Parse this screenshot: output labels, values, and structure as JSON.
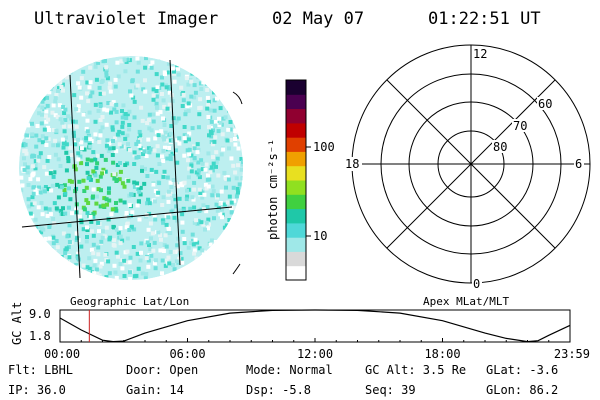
{
  "header": {
    "title": "Ultraviolet Imager",
    "date": "02 May 07",
    "time": "01:22:51 UT"
  },
  "colorbar": {
    "label": "photon cm⁻²s⁻¹",
    "ticks": [
      "100",
      "10"
    ],
    "colors": [
      "#ffffff",
      "#d9d9d9",
      "#9fe8e8",
      "#4fd8d8",
      "#1fc8a8",
      "#40d040",
      "#90e020",
      "#e8e020",
      "#f0a000",
      "#e04000",
      "#c00000",
      "#900030",
      "#4a0050",
      "#1a0030"
    ]
  },
  "polar": {
    "mlt_labels": {
      "top": "12",
      "left": "18",
      "right": "6",
      "bottom": "0"
    },
    "lat_labels": [
      "60",
      "70",
      "80"
    ]
  },
  "map_labels": {
    "left": "Geographic Lat/Lon",
    "right": "Apex MLat/MLT"
  },
  "chart_data": {
    "type": "line",
    "title": "",
    "ylabel": "GC Alt",
    "yticks": [
      "9.0",
      "1.8"
    ],
    "xticks": [
      "00:00",
      "06:00",
      "12:00",
      "18:00",
      "23:59"
    ],
    "xlim_hours": [
      0,
      24
    ],
    "ylim": [
      1.8,
      9.0
    ],
    "marker_time_hours": 1.38,
    "series": [
      {
        "x": [
          0,
          1,
          2,
          2.5,
          3,
          4,
          6,
          8,
          10,
          12,
          14,
          16,
          18,
          20,
          21,
          22,
          22.5,
          23,
          23.98
        ],
        "values": [
          7.2,
          4.5,
          2.2,
          1.9,
          2.0,
          3.8,
          6.6,
          8.3,
          8.9,
          9.0,
          8.9,
          8.3,
          6.6,
          3.8,
          2.6,
          1.9,
          2.1,
          3.3,
          5.5
        ]
      }
    ]
  },
  "footer": {
    "row1": [
      "Flt: LBHL",
      "Door: Open",
      "Mode: Normal",
      "GC Alt: 3.5 Re",
      "GLat:  -3.6"
    ],
    "row2": [
      "IP: 36.0",
      "Gain: 14",
      "Dsp:   -5.8",
      "Seq: 39",
      "GLon:  86.2"
    ]
  }
}
